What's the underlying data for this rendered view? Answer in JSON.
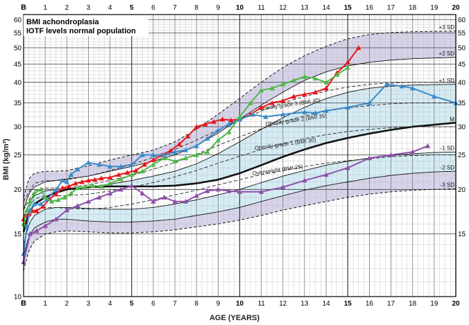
{
  "chart_data": {
    "type": "line",
    "title_lines": [
      "BMI achondroplasia",
      "IOTF levels normal population"
    ],
    "xlabel": "AGE (YEARS)",
    "ylabel": "BMI (kg/m²)",
    "x_range": [
      0,
      20
    ],
    "y_range": [
      10,
      62
    ],
    "y_scale": "log",
    "x_birth_label": "B",
    "x_ticks": [
      1,
      2,
      3,
      4,
      5,
      6,
      7,
      8,
      9,
      10,
      11,
      12,
      13,
      14,
      15,
      16,
      17,
      18,
      19,
      20
    ],
    "x_bold_ticks": [
      5,
      10,
      15,
      20
    ],
    "y_left_ticks": [
      10,
      15,
      20,
      25,
      30,
      35,
      40,
      45,
      50,
      55,
      60
    ],
    "y_right_ticks": [
      15,
      20,
      25,
      30,
      35,
      40,
      45,
      50,
      55,
      60
    ],
    "reference_curves": [
      {
        "label": "+3 SD",
        "style": "dashed",
        "x": [
          0,
          0.25,
          0.5,
          1,
          1.5,
          2,
          3,
          4,
          5,
          6,
          7,
          8,
          9,
          10,
          11,
          12,
          13,
          14,
          15,
          16,
          17,
          18,
          19,
          20
        ],
        "y": [
          19,
          21.5,
          22.2,
          22.5,
          22.5,
          22.6,
          23.3,
          24.2,
          25.0,
          25.8,
          27.2,
          29.5,
          32.5,
          36,
          40,
          44,
          47.5,
          50.5,
          53,
          54.5,
          55.2,
          55.5,
          55.6,
          55.7
        ]
      },
      {
        "label": "+2 SD",
        "style": "solid",
        "x": [
          0,
          0.25,
          0.5,
          1,
          1.5,
          2,
          3,
          4,
          5,
          6,
          7,
          8,
          9,
          10,
          11,
          12,
          13,
          14,
          15,
          16,
          17,
          18,
          19,
          20
        ],
        "y": [
          17.5,
          19.5,
          20.3,
          21,
          21.2,
          21.4,
          21.8,
          22.5,
          23.2,
          24,
          25,
          26.5,
          28.8,
          31.5,
          34.5,
          37.5,
          40.5,
          42.8,
          44.5,
          45.5,
          46.2,
          46.6,
          46.8,
          47
        ]
      },
      {
        "label": "+1 SD",
        "style": "solid",
        "x": [
          0,
          0.25,
          0.5,
          1,
          1.5,
          2,
          3,
          4,
          5,
          6,
          7,
          8,
          9,
          10,
          11,
          12,
          13,
          14,
          15,
          16,
          17,
          18,
          19,
          20
        ],
        "y": [
          16.3,
          18.3,
          19.2,
          19.8,
          20.0,
          20.1,
          20.3,
          20.7,
          21.2,
          21.8,
          22.5,
          23.6,
          25.2,
          27.2,
          29.5,
          31.8,
          34,
          36,
          37.5,
          38.5,
          39,
          39.3,
          39.4,
          39.5
        ]
      },
      {
        "label": "M",
        "style": "bold",
        "x": [
          0,
          0.25,
          0.5,
          1,
          1.5,
          2,
          3,
          4,
          5,
          6,
          7,
          8,
          9,
          10,
          11,
          12,
          13,
          14,
          15,
          16,
          17,
          18,
          19,
          20
        ],
        "y": [
          15.2,
          17.2,
          18.2,
          19.0,
          19.6,
          20.0,
          20.3,
          20.4,
          20.4,
          20.4,
          20.5,
          20.8,
          21.3,
          22.2,
          23.4,
          24.7,
          25.9,
          27,
          27.9,
          28.7,
          29.4,
          30,
          30.4,
          30.8
        ]
      },
      {
        "label": "-1 SD",
        "style": "solid",
        "x": [
          0,
          0.25,
          0.5,
          1,
          1.5,
          2,
          3,
          4,
          5,
          6,
          7,
          8,
          9,
          10,
          11,
          12,
          13,
          14,
          15,
          16,
          17,
          18,
          19,
          20
        ],
        "y": [
          14.0,
          16.0,
          16.9,
          17.6,
          17.8,
          17.8,
          17.7,
          17.6,
          17.6,
          17.8,
          18.2,
          18.7,
          19.3,
          20.0,
          20.9,
          21.8,
          22.6,
          23.4,
          24.0,
          24.5,
          24.9,
          25.2,
          25.4,
          25.5
        ]
      },
      {
        "label": "-2 SD",
        "style": "solid",
        "x": [
          0,
          0.25,
          0.5,
          1,
          1.5,
          2,
          3,
          4,
          5,
          6,
          7,
          8,
          9,
          10,
          11,
          12,
          13,
          14,
          15,
          16,
          17,
          18,
          19,
          20
        ],
        "y": [
          13.0,
          14.8,
          15.6,
          16.2,
          16.5,
          16.5,
          16.3,
          16.2,
          16.2,
          16.3,
          16.5,
          16.9,
          17.3,
          17.8,
          18.5,
          19.2,
          19.9,
          20.5,
          21,
          21.5,
          21.9,
          22.2,
          22.4,
          22.5
        ]
      },
      {
        "label": "-3 SD",
        "style": "dashed",
        "x": [
          0,
          0.25,
          0.5,
          1,
          1.5,
          2,
          3,
          4,
          5,
          6,
          7,
          8,
          9,
          10,
          11,
          12,
          13,
          14,
          15,
          16,
          17,
          18,
          19,
          20
        ],
        "y": [
          11.8,
          13.5,
          14.3,
          15.0,
          15.2,
          15.3,
          15.2,
          15.1,
          15.1,
          15.2,
          15.4,
          15.7,
          16,
          16.4,
          16.9,
          17.5,
          18,
          18.5,
          19,
          19.4,
          19.7,
          19.9,
          20,
          20.1
        ]
      }
    ],
    "iotf_curves": [
      {
        "label": "Obesity grade 3 (BMI 40)",
        "x": [
          0,
          0.5,
          1,
          1.5,
          2,
          3,
          4,
          5,
          6,
          7,
          8,
          9,
          10,
          11,
          12,
          13,
          14,
          15,
          16,
          17,
          18,
          19,
          20
        ],
        "y": [
          18.5,
          20.8,
          21.2,
          21.2,
          21.3,
          21.8,
          22.6,
          23.5,
          24.6,
          25.9,
          27.5,
          29.4,
          31.3,
          33.2,
          35,
          36.5,
          37.8,
          38.8,
          39.5,
          39.8,
          40,
          40,
          40
        ]
      },
      {
        "label": "Obesity grade 2 (BMI 35)",
        "x": [
          0,
          0.5,
          1,
          1.5,
          2,
          3,
          4,
          5,
          6,
          7,
          8,
          9,
          10,
          11,
          12,
          13,
          14,
          15,
          16,
          17,
          18,
          19,
          20
        ],
        "y": [
          17.5,
          19.8,
          20.2,
          20.2,
          20.2,
          20.6,
          21.2,
          21.9,
          22.8,
          23.8,
          25.1,
          26.6,
          28.1,
          29.6,
          31,
          32.2,
          33.2,
          33.9,
          34.4,
          34.8,
          35,
          35,
          35
        ]
      },
      {
        "label": "Obesity grade 1 (BMI 30)",
        "x": [
          0,
          0.5,
          1,
          1.5,
          2,
          3,
          4,
          5,
          6,
          7,
          8,
          9,
          10,
          11,
          12,
          13,
          14,
          15,
          16,
          17,
          18,
          19,
          20
        ],
        "y": [
          16.8,
          18.8,
          19.2,
          19.2,
          19.2,
          19.4,
          19.8,
          20.3,
          20.9,
          21.7,
          22.6,
          23.7,
          24.8,
          25.9,
          26.9,
          27.8,
          28.5,
          29.1,
          29.5,
          29.8,
          30,
          30,
          30
        ]
      },
      {
        "label": "Overweight (BMI 25)",
        "x": [
          0,
          0.5,
          1,
          1.5,
          2,
          3,
          4,
          5,
          6,
          7,
          8,
          9,
          10,
          11,
          12,
          13,
          14,
          15,
          16,
          17,
          18,
          19,
          20
        ],
        "y": [
          15.8,
          17.5,
          17.8,
          17.8,
          17.7,
          17.6,
          17.8,
          18.2,
          18.7,
          19.3,
          19.9,
          20.6,
          21.3,
          22,
          22.6,
          23.2,
          23.7,
          24.1,
          24.4,
          24.7,
          24.9,
          25,
          25
        ]
      }
    ],
    "series": [
      {
        "color": "#e8161c",
        "marker": "triangle",
        "x": [
          0,
          0.1,
          0.25,
          0.4,
          0.6,
          0.9,
          1.2,
          1.5,
          1.8,
          2.1,
          2.4,
          2.7,
          3,
          3.3,
          3.6,
          4,
          4.4,
          4.8,
          5.2,
          5.6,
          6,
          6.4,
          6.8,
          7.2,
          7.6,
          8.0,
          8.4,
          8.8,
          9.2,
          9.6,
          10,
          10.5,
          11,
          11.5,
          12,
          12.5,
          13,
          13.5,
          14,
          14.5,
          15,
          15.5
        ],
        "y": [
          16.5,
          16.9,
          17.1,
          17.4,
          17.4,
          17.9,
          18.8,
          19.4,
          20.2,
          20.4,
          20.8,
          21.0,
          21.2,
          21.3,
          21.5,
          21.6,
          22.0,
          22.3,
          22.6,
          23.5,
          24.2,
          25.0,
          25.7,
          26.8,
          28.2,
          30.0,
          30.5,
          31.0,
          31.5,
          31.3,
          31.5,
          32.5,
          34.0,
          35.0,
          35.5,
          36.5,
          37.0,
          37.5,
          38.5,
          42.5,
          45.5,
          50.0
        ]
      },
      {
        "color": "#3b8bc9",
        "marker": "triangle",
        "x": [
          0,
          0.15,
          0.3,
          0.5,
          0.8,
          1.1,
          1.5,
          1.8,
          2.0,
          2.2,
          2.5,
          3,
          3.5,
          4,
          4.5,
          5,
          5.5,
          6,
          6.5,
          7,
          7.5,
          8,
          8.5,
          9,
          9.5,
          10,
          10.6,
          11.2,
          12,
          13,
          13.5,
          14,
          15,
          16,
          16.8,
          17.5,
          18,
          19,
          20
        ],
        "y": [
          13.2,
          15.8,
          17.5,
          18.2,
          18.2,
          18.8,
          20.0,
          21.2,
          21.0,
          22.0,
          22.8,
          23.8,
          23.5,
          23.2,
          23.2,
          23.5,
          25.0,
          25.0,
          25.0,
          25.5,
          25.8,
          26.5,
          27.8,
          29.3,
          30.5,
          31.5,
          32.5,
          32.0,
          32.5,
          33.0,
          32.8,
          33.3,
          34.0,
          35.0,
          39.5,
          39.0,
          38.5,
          36.5,
          35.0
        ]
      },
      {
        "color": "#4fb848",
        "marker": "triangle",
        "x": [
          0,
          0.15,
          0.3,
          0.5,
          0.8,
          1.0,
          1.3,
          1.6,
          1.9,
          2.2,
          2.5,
          2.8,
          3.2,
          3.6,
          4,
          4.5,
          5,
          5.5,
          6,
          6.5,
          7,
          7.5,
          8,
          8.5,
          9,
          9.5,
          10,
          10.5,
          11,
          11.5,
          12,
          12.5,
          13,
          13.5,
          14,
          14.5,
          15
        ],
        "y": [
          16.0,
          17.5,
          18.5,
          19.5,
          20.0,
          19.0,
          18.5,
          18.7,
          19.0,
          19.5,
          20.2,
          20.3,
          20.5,
          20.4,
          20.8,
          21.4,
          22.0,
          22.5,
          23.5,
          24.5,
          24.0,
          24.5,
          25.0,
          25.5,
          27.5,
          29.0,
          32.0,
          35.0,
          38.0,
          38.5,
          39.5,
          40.5,
          41.5,
          41.0,
          40.0,
          42.0,
          44.0
        ]
      },
      {
        "color": "#8e4fa7",
        "marker": "triangle",
        "x": [
          0,
          0.3,
          0.6,
          1.0,
          1.5,
          2,
          2.5,
          3,
          3.5,
          4,
          4.5,
          5,
          5.5,
          6,
          6.5,
          7,
          7.5,
          8,
          8.5,
          9,
          9.5,
          10,
          11,
          12,
          13,
          14,
          15,
          16,
          17,
          18,
          18.7
        ],
        "y": [
          12.5,
          15.0,
          15.3,
          15.8,
          16.5,
          17.5,
          18.0,
          18.5,
          19.0,
          19.5,
          20.0,
          20.5,
          19.5,
          18.5,
          19.0,
          18.5,
          18.5,
          19.2,
          19.8,
          20.0,
          19.8,
          19.7,
          19.7,
          20.3,
          21.2,
          22.0,
          23.0,
          24.5,
          25.0,
          25.5,
          26.5
        ]
      }
    ]
  }
}
